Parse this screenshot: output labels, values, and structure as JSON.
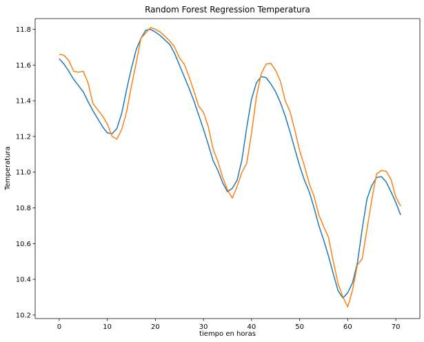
{
  "chart_data": {
    "type": "line",
    "title": "Random Forest Regression Temperatura",
    "xlabel": "tiempo en horas",
    "ylabel": "Temperatura",
    "xlim": [
      -5,
      75
    ],
    "ylim": [
      10.18,
      11.86
    ],
    "xticks": [
      0,
      10,
      20,
      30,
      40,
      50,
      60,
      70
    ],
    "yticks": [
      10.2,
      10.4,
      10.6,
      10.8,
      11.0,
      11.2,
      11.4,
      11.6,
      11.8
    ],
    "ytick_labels": [
      "10.2",
      "10.4",
      "10.6",
      "10.8",
      "11.0",
      "11.2",
      "11.4",
      "11.6",
      "11.8"
    ],
    "grid": false,
    "x": [
      0,
      1,
      2,
      3,
      4,
      5,
      6,
      7,
      8,
      9,
      10,
      11,
      12,
      13,
      14,
      15,
      16,
      17,
      18,
      19,
      20,
      21,
      22,
      23,
      24,
      25,
      26,
      27,
      28,
      29,
      30,
      31,
      32,
      33,
      34,
      35,
      36,
      37,
      38,
      39,
      40,
      41,
      42,
      43,
      44,
      45,
      46,
      47,
      48,
      49,
      50,
      51,
      52,
      53,
      54,
      55,
      56,
      57,
      58,
      59,
      60,
      61,
      62,
      63,
      64,
      65,
      66,
      67,
      68,
      69,
      70,
      71
    ],
    "series": [
      {
        "color": "#1f77b4",
        "values": [
          11.635,
          11.605,
          11.565,
          11.52,
          11.485,
          11.45,
          11.395,
          11.345,
          11.3,
          11.255,
          11.22,
          11.215,
          11.245,
          11.33,
          11.46,
          11.58,
          11.685,
          11.75,
          11.795,
          11.8,
          11.785,
          11.765,
          11.74,
          11.715,
          11.665,
          11.6,
          11.535,
          11.47,
          11.4,
          11.32,
          11.24,
          11.155,
          11.065,
          11.01,
          10.94,
          10.89,
          10.91,
          10.955,
          11.07,
          11.25,
          11.41,
          11.5,
          11.535,
          11.53,
          11.495,
          11.45,
          11.39,
          11.315,
          11.225,
          11.13,
          11.035,
          10.955,
          10.89,
          10.8,
          10.7,
          10.62,
          10.53,
          10.43,
          10.335,
          10.295,
          10.325,
          10.38,
          10.49,
          10.68,
          10.85,
          10.925,
          10.97,
          10.975,
          10.945,
          10.89,
          10.83,
          10.76
        ]
      },
      {
        "color": "#ff7f0e",
        "values": [
          11.66,
          11.655,
          11.625,
          11.565,
          11.56,
          11.565,
          11.5,
          11.385,
          11.35,
          11.315,
          11.27,
          11.2,
          11.185,
          11.24,
          11.335,
          11.48,
          11.61,
          11.75,
          11.78,
          11.81,
          11.8,
          11.785,
          11.76,
          11.735,
          11.7,
          11.64,
          11.605,
          11.535,
          11.455,
          11.37,
          11.335,
          11.255,
          11.13,
          11.06,
          10.97,
          10.9,
          10.855,
          10.92,
          11.0,
          11.05,
          11.22,
          11.42,
          11.55,
          11.605,
          11.61,
          11.57,
          11.51,
          11.4,
          11.34,
          11.235,
          11.12,
          11.035,
          10.935,
          10.865,
          10.76,
          10.695,
          10.635,
          10.5,
          10.375,
          10.3,
          10.245,
          10.34,
          10.48,
          10.515,
          10.68,
          10.845,
          10.99,
          11.01,
          11.005,
          10.96,
          10.86,
          10.81
        ]
      }
    ]
  }
}
